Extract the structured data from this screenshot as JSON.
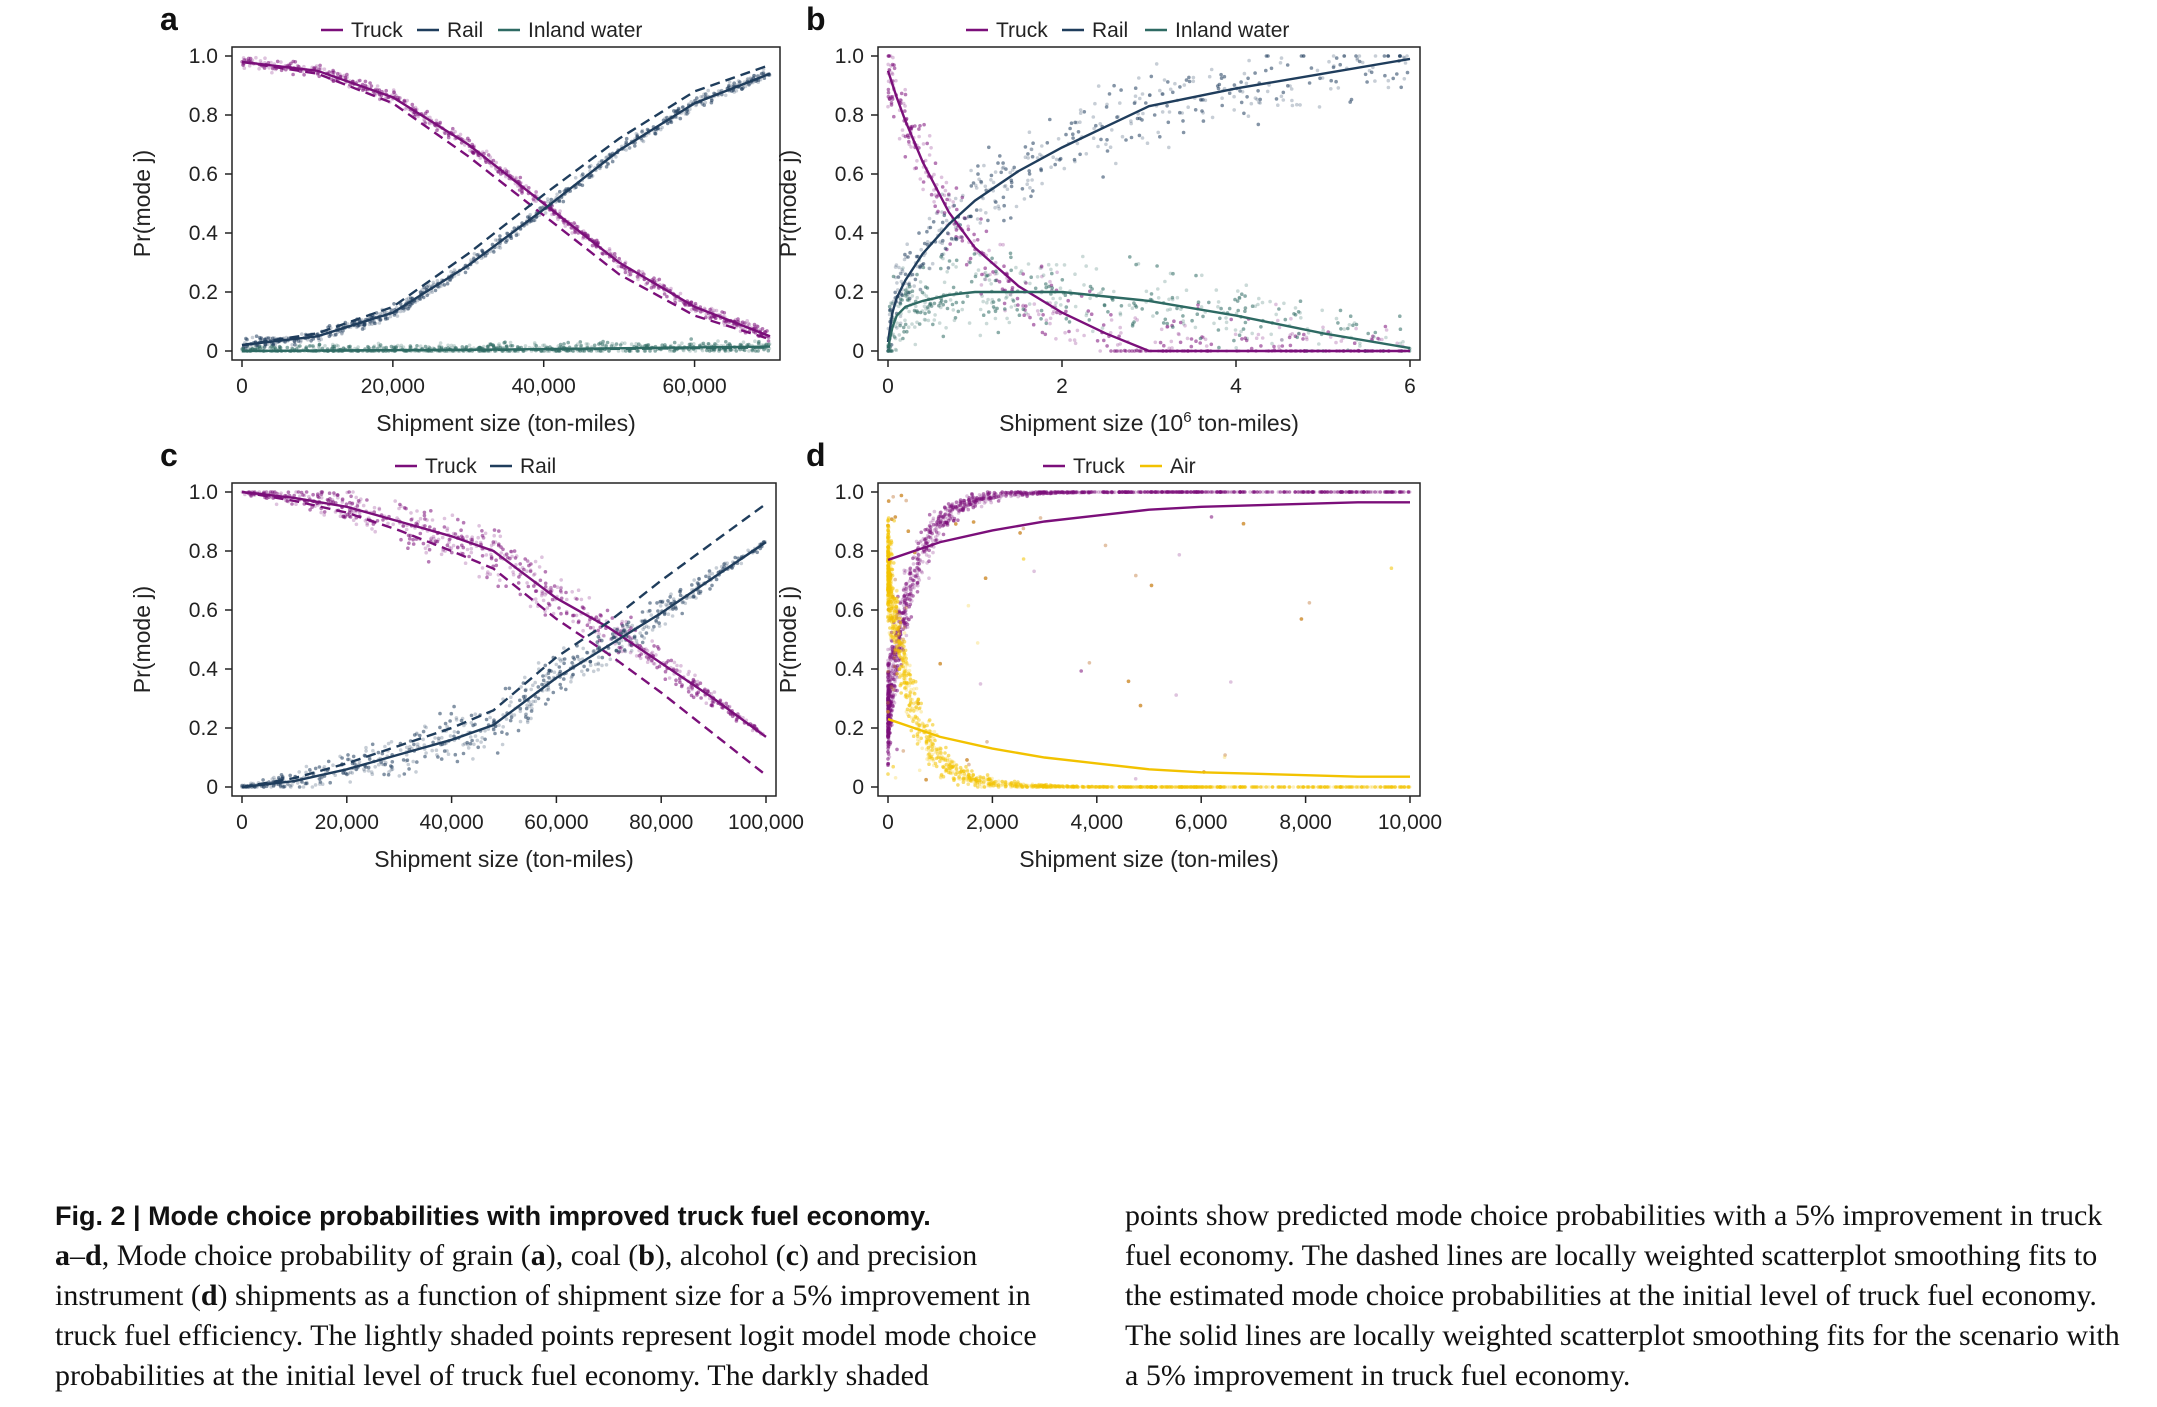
{
  "colors": {
    "truck": "#7b0f7a",
    "rail": "#1f3d5c",
    "inland_water": "#2e6a63",
    "air": "#f2c200"
  },
  "chart_data": [
    {
      "panel": "a",
      "type": "scatter",
      "xlabel": "Shipment size (ton-miles)",
      "ylabel": "Pr(mode j)",
      "xlim": [
        0,
        70000
      ],
      "ylim": [
        0,
        1
      ],
      "xticks": [
        0,
        20000,
        40000,
        60000
      ],
      "xtick_labels": [
        "0",
        "20,000",
        "40,000",
        "60,000"
      ],
      "yticks": [
        0,
        0.2,
        0.4,
        0.6,
        0.8,
        1.0
      ],
      "ytick_labels": [
        "0",
        "0.2",
        "0.4",
        "0.6",
        "0.8",
        "1.0"
      ],
      "legend": [
        "Truck",
        "Rail",
        "Inland water"
      ],
      "legend_position": "top",
      "series": [
        {
          "name": "Truck",
          "style": "solid",
          "x": [
            0,
            10000,
            20000,
            30000,
            40000,
            50000,
            60000,
            70000
          ],
          "y": [
            0.98,
            0.95,
            0.86,
            0.7,
            0.5,
            0.3,
            0.15,
            0.05
          ]
        },
        {
          "name": "Truck",
          "style": "dashed",
          "x": [
            0,
            10000,
            20000,
            30000,
            40000,
            50000,
            60000,
            70000
          ],
          "y": [
            0.98,
            0.94,
            0.84,
            0.66,
            0.46,
            0.26,
            0.12,
            0.04
          ]
        },
        {
          "name": "Rail",
          "style": "solid",
          "x": [
            0,
            10000,
            20000,
            30000,
            40000,
            50000,
            60000,
            70000
          ],
          "y": [
            0.02,
            0.05,
            0.13,
            0.29,
            0.48,
            0.68,
            0.84,
            0.94
          ]
        },
        {
          "name": "Rail",
          "style": "dashed",
          "x": [
            0,
            10000,
            20000,
            30000,
            40000,
            50000,
            60000,
            70000
          ],
          "y": [
            0.02,
            0.06,
            0.15,
            0.33,
            0.53,
            0.72,
            0.88,
            0.97
          ]
        },
        {
          "name": "Inland water",
          "style": "solid",
          "x": [
            0,
            35000,
            70000
          ],
          "y": [
            0.0,
            0.005,
            0.015
          ]
        },
        {
          "name": "Inland water",
          "style": "dashed",
          "x": [
            0,
            35000,
            70000
          ],
          "y": [
            0.0,
            0.004,
            0.012
          ]
        }
      ]
    },
    {
      "panel": "b",
      "type": "scatter",
      "xlabel": "Shipment size (10",
      "xlabel_sup": "6",
      "xlabel_end": " ton-miles)",
      "ylabel": "Pr(mode j)",
      "xlim": [
        0,
        6
      ],
      "ylim": [
        0,
        1
      ],
      "xticks": [
        0,
        2,
        4,
        6
      ],
      "xtick_labels": [
        "0",
        "2",
        "4",
        "6"
      ],
      "yticks": [
        0,
        0.2,
        0.4,
        0.6,
        0.8,
        1.0
      ],
      "ytick_labels": [
        "0",
        "0.2",
        "0.4",
        "0.6",
        "0.8",
        "1.0"
      ],
      "legend": [
        "Truck",
        "Rail",
        "Inland water"
      ],
      "legend_position": "top",
      "series": [
        {
          "name": "Truck",
          "style": "solid",
          "x": [
            0,
            0.1,
            0.2,
            0.4,
            0.7,
            1.0,
            1.5,
            2.0,
            2.5,
            3.0,
            4.0,
            6.0
          ],
          "y": [
            0.95,
            0.86,
            0.78,
            0.64,
            0.47,
            0.35,
            0.22,
            0.13,
            0.06,
            0.0,
            0.0,
            0.0
          ]
        },
        {
          "name": "Rail",
          "style": "solid",
          "x": [
            0,
            0.05,
            0.1,
            0.2,
            0.4,
            0.7,
            1.0,
            1.5,
            2.0,
            2.5,
            3.0,
            4.0,
            5.0,
            6.0
          ],
          "y": [
            0.03,
            0.13,
            0.18,
            0.24,
            0.33,
            0.43,
            0.51,
            0.61,
            0.69,
            0.76,
            0.83,
            0.89,
            0.94,
            0.99
          ]
        },
        {
          "name": "Inland water",
          "style": "solid",
          "x": [
            0,
            0.05,
            0.1,
            0.2,
            0.4,
            0.7,
            1.0,
            1.5,
            2.0,
            3.0,
            4.0,
            5.0,
            6.0
          ],
          "y": [
            0.01,
            0.08,
            0.12,
            0.15,
            0.17,
            0.19,
            0.2,
            0.2,
            0.2,
            0.17,
            0.12,
            0.06,
            0.01
          ]
        }
      ]
    },
    {
      "panel": "c",
      "type": "scatter",
      "xlabel": "Shipment size (ton-miles)",
      "ylabel": "Pr(mode j)",
      "xlim": [
        0,
        100000
      ],
      "ylim": [
        0,
        1
      ],
      "xticks": [
        0,
        20000,
        40000,
        60000,
        80000,
        100000
      ],
      "xtick_labels": [
        "0",
        "20,000",
        "40,000",
        "60,000",
        "80,000",
        "100,000"
      ],
      "yticks": [
        0,
        0.2,
        0.4,
        0.6,
        0.8,
        1.0
      ],
      "ytick_labels": [
        "0",
        "0.2",
        "0.4",
        "0.6",
        "0.8",
        "1.0"
      ],
      "legend": [
        "Truck",
        "Rail"
      ],
      "legend_position": "top",
      "series": [
        {
          "name": "Truck",
          "style": "solid",
          "x": [
            0,
            10000,
            20000,
            30000,
            40000,
            48000,
            60000,
            70000,
            80000,
            90000,
            100000
          ],
          "y": [
            1.0,
            0.98,
            0.95,
            0.9,
            0.85,
            0.8,
            0.64,
            0.54,
            0.42,
            0.3,
            0.17
          ]
        },
        {
          "name": "Truck",
          "style": "dashed",
          "x": [
            0,
            10000,
            20000,
            30000,
            40000,
            48000,
            60000,
            70000,
            80000,
            90000,
            100000
          ],
          "y": [
            1.0,
            0.97,
            0.93,
            0.87,
            0.8,
            0.74,
            0.57,
            0.45,
            0.32,
            0.18,
            0.04
          ]
        },
        {
          "name": "Rail",
          "style": "solid",
          "x": [
            0,
            10000,
            20000,
            30000,
            40000,
            48000,
            60000,
            70000,
            80000,
            90000,
            100000
          ],
          "y": [
            0.0,
            0.02,
            0.06,
            0.11,
            0.16,
            0.21,
            0.37,
            0.48,
            0.59,
            0.71,
            0.83
          ]
        },
        {
          "name": "Rail",
          "style": "dashed",
          "x": [
            0,
            10000,
            20000,
            30000,
            40000,
            48000,
            60000,
            70000,
            80000,
            90000,
            100000
          ],
          "y": [
            0.0,
            0.03,
            0.08,
            0.14,
            0.2,
            0.26,
            0.44,
            0.56,
            0.7,
            0.83,
            0.96
          ]
        }
      ]
    },
    {
      "panel": "d",
      "type": "scatter",
      "xlabel": "Shipment size (ton-miles)",
      "ylabel": "Pr(mode j)",
      "xlim": [
        0,
        10000
      ],
      "ylim": [
        0,
        1
      ],
      "xticks": [
        0,
        2000,
        4000,
        6000,
        8000,
        10000
      ],
      "xtick_labels": [
        "0",
        "2,000",
        "4,000",
        "6,000",
        "8,000",
        "10,000"
      ],
      "yticks": [
        0,
        0.2,
        0.4,
        0.6,
        0.8,
        1.0
      ],
      "ytick_labels": [
        "0",
        "0.2",
        "0.4",
        "0.6",
        "0.8",
        "1.0"
      ],
      "legend": [
        "Truck",
        "Air"
      ],
      "legend_position": "top",
      "series": [
        {
          "name": "Truck",
          "style": "solid",
          "x": [
            0,
            500,
            1000,
            2000,
            3000,
            4000,
            5000,
            6000,
            7000,
            8000,
            9000,
            10000
          ],
          "y": [
            0.77,
            0.8,
            0.83,
            0.87,
            0.9,
            0.92,
            0.94,
            0.95,
            0.955,
            0.96,
            0.965,
            0.965
          ]
        },
        {
          "name": "Air",
          "style": "solid",
          "x": [
            0,
            500,
            1000,
            2000,
            3000,
            4000,
            5000,
            6000,
            7000,
            8000,
            9000,
            10000
          ],
          "y": [
            0.23,
            0.2,
            0.17,
            0.13,
            0.1,
            0.08,
            0.06,
            0.05,
            0.045,
            0.04,
            0.035,
            0.035
          ]
        }
      ]
    }
  ],
  "caption": {
    "title": "Fig. 2 | Mode choice probabilities with improved truck fuel economy.",
    "left_segments": [
      {
        "text": "a",
        "bold": true
      },
      {
        "text": "–",
        "bold": false
      },
      {
        "text": "d",
        "bold": true
      },
      {
        "text": ", Mode choice probability of grain (",
        "bold": false
      },
      {
        "text": "a",
        "bold": true
      },
      {
        "text": "), coal (",
        "bold": false
      },
      {
        "text": "b",
        "bold": true
      },
      {
        "text": "), alcohol (",
        "bold": false
      },
      {
        "text": "c",
        "bold": true
      },
      {
        "text": ") and precision instrument (",
        "bold": false
      },
      {
        "text": "d",
        "bold": true
      },
      {
        "text": ") shipments as a function of shipment size for a 5% improvement in truck fuel efficiency. The lightly shaded points represent logit model mode choice probabilities at the initial level of truck fuel economy. The darkly shaded",
        "bold": false
      }
    ],
    "right": "points show predicted mode choice probabilities with a 5% improvement in truck fuel economy. The dashed lines are locally weighted scatterplot smoothing fits to the estimated mode choice probabilities at the initial level of truck fuel economy. The solid lines are locally weighted scatterplot smoothing fits for the scenario with a 5% improvement in truck fuel economy."
  }
}
